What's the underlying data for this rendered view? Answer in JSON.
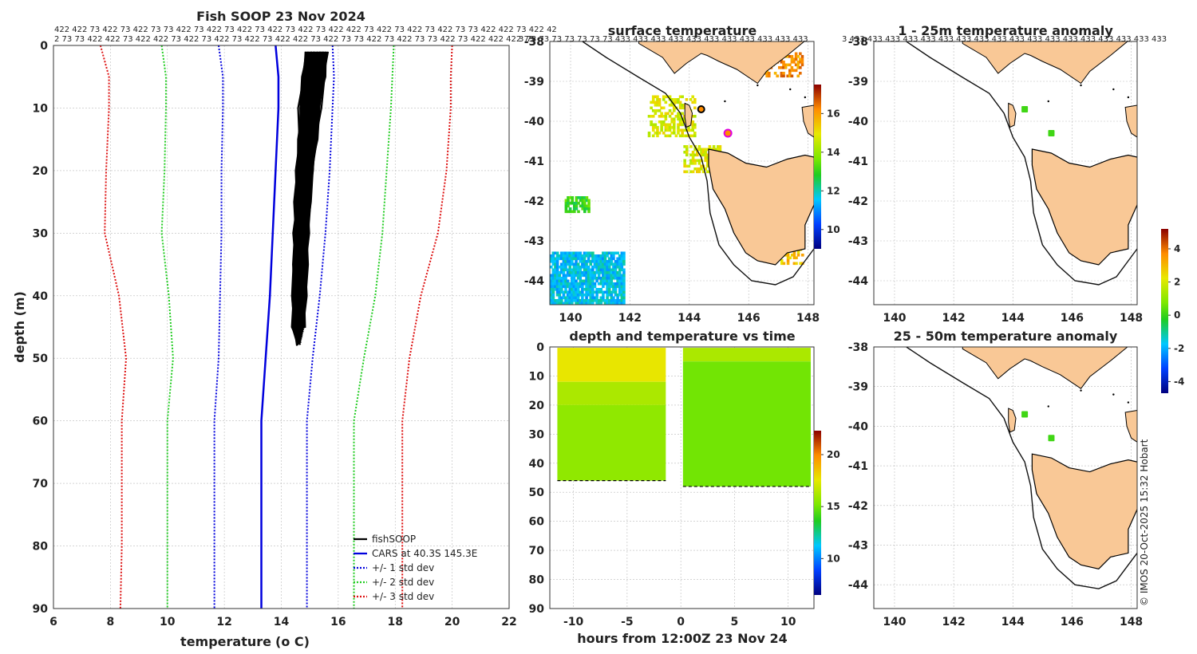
{
  "chart_data": [
    {
      "type": "line",
      "title": "Fish SOOP 23 Nov 2024",
      "xlabel": "temperature",
      "xlabel_unit": "(o C)",
      "ylabel": "depth (m)",
      "xlim": [
        6,
        22
      ],
      "ylim": [
        0,
        90
      ],
      "xticks": [
        "6",
        "8",
        "10",
        "12",
        "14",
        "16",
        "18",
        "20",
        "22"
      ],
      "yticks": [
        "0",
        "10",
        "20",
        "30",
        "40",
        "50",
        "60",
        "70",
        "80",
        "90"
      ],
      "top_counts_row1": "422 422 73 422 73 422 73 73 422 73 422 73 422 73 422 73 422 73 422 422 73 422 73 422 73 422 73 73 422 422 73 422 42",
      "top_counts_row2": "2 73 73 422 422 73 422 422 73 422 73 422 73 422 73 422 422 73 422 73 73 422 73 422 73 73 422 73 422 422 422 73",
      "legend": [
        "fishSOOP",
        "CARS at 40.3S 145.3E",
        "+/- 1 std dev",
        "+/- 2 std dev",
        "+/- 3 std dev"
      ],
      "series": [
        {
          "name": "CARS at 40.3S 145.3E",
          "color": "#0000dd",
          "depth": [
            0,
            5,
            10,
            20,
            30,
            40,
            50,
            60,
            70,
            80,
            90
          ],
          "temp": [
            13.8,
            13.9,
            13.9,
            13.8,
            13.7,
            13.6,
            13.45,
            13.3,
            13.3,
            13.3,
            13.3
          ]
        },
        {
          "name": "-1 std",
          "color": "#0000dd",
          "depth": [
            0,
            5,
            10,
            20,
            30,
            40,
            50,
            60,
            70,
            80,
            90
          ],
          "temp": [
            11.8,
            11.95,
            11.95,
            11.9,
            11.9,
            11.85,
            11.8,
            11.65,
            11.65,
            11.65,
            11.65
          ]
        },
        {
          "name": "+1 std",
          "color": "#0000dd",
          "depth": [
            0,
            5,
            10,
            20,
            30,
            40,
            50,
            60,
            70,
            80,
            90
          ],
          "temp": [
            15.8,
            15.85,
            15.8,
            15.7,
            15.55,
            15.35,
            15.1,
            14.9,
            14.9,
            14.9,
            14.9
          ]
        },
        {
          "name": "-2 std",
          "color": "#22cc22",
          "depth": [
            0,
            5,
            10,
            20,
            30,
            40,
            50,
            60,
            70,
            80,
            90
          ],
          "temp": [
            9.8,
            9.95,
            9.95,
            9.9,
            9.8,
            10.05,
            10.2,
            10.0,
            10.0,
            10.0,
            10.0
          ]
        },
        {
          "name": "+2 std",
          "color": "#22cc22",
          "depth": [
            0,
            5,
            10,
            20,
            30,
            40,
            50,
            60,
            70,
            80,
            90
          ],
          "temp": [
            17.95,
            17.9,
            17.85,
            17.7,
            17.55,
            17.3,
            16.9,
            16.55,
            16.55,
            16.55,
            16.55
          ]
        },
        {
          "name": "-3 std",
          "color": "#dd1111",
          "depth": [
            0,
            5,
            10,
            20,
            30,
            40,
            50,
            60,
            70,
            80,
            90
          ],
          "temp": [
            7.65,
            7.95,
            7.95,
            7.85,
            7.8,
            8.3,
            8.55,
            8.4,
            8.4,
            8.4,
            8.35
          ]
        },
        {
          "name": "+3 std",
          "color": "#dd1111",
          "depth": [
            0,
            5,
            10,
            20,
            30,
            40,
            50,
            60,
            70,
            80,
            90
          ],
          "temp": [
            20.0,
            19.95,
            19.95,
            19.8,
            19.5,
            18.9,
            18.5,
            18.25,
            18.25,
            18.25,
            18.25
          ]
        }
      ],
      "fishsoop_profile": {
        "depth": [
          1,
          5,
          10,
          15,
          20,
          25,
          30,
          35,
          40,
          45,
          48
        ],
        "temp_min": [
          14.85,
          14.75,
          14.65,
          14.6,
          14.55,
          14.5,
          14.45,
          14.45,
          14.4,
          14.4,
          14.6
        ],
        "temp_max": [
          15.6,
          15.55,
          15.35,
          15.25,
          15.1,
          15.0,
          14.95,
          14.9,
          14.85,
          14.8,
          14.75
        ]
      }
    },
    {
      "type": "heatmap",
      "title": "surface temperature",
      "xticks": [
        "140",
        "142",
        "144",
        "146",
        "148"
      ],
      "yticks": [
        "-38",
        "-39",
        "-40",
        "-41",
        "-42",
        "-43",
        "-44"
      ],
      "xlim": [
        139.3,
        148.2
      ],
      "ylim": [
        -44.6,
        -38
      ],
      "top_counts": "3 73 73 73 73 73 73 73 433 433 433 433 433 433 433 433 433 433 433",
      "colorbar_ticks": [
        "10",
        "12",
        "14",
        "16"
      ],
      "colorbar_range": [
        9,
        17.5
      ],
      "markers": [
        {
          "lon": 144.4,
          "lat": -39.7,
          "kind": "orange-black"
        },
        {
          "lon": 145.3,
          "lat": -40.3,
          "kind": "magenta-ring"
        }
      ]
    },
    {
      "type": "scatter",
      "title": "depth and temperature vs time",
      "xlabel": "hours from 12:00Z 23 Nov 24",
      "xticks": [
        "-10",
        "-5",
        "0",
        "5",
        "10"
      ],
      "yticks": [
        "0",
        "10",
        "20",
        "30",
        "40",
        "50",
        "60",
        "70",
        "80",
        "90"
      ],
      "xlim": [
        -12.2,
        12.4
      ],
      "ylim": [
        0,
        90
      ],
      "colorbar_ticks": [
        "10",
        "15",
        "20"
      ],
      "colorbar_range": [
        6.5,
        22.3
      ],
      "segments": [
        {
          "t0": -11.5,
          "t1": -1.4,
          "depth_max": 46
        },
        {
          "t0": 0.2,
          "t1": 12.1,
          "depth_max": 48
        }
      ]
    },
    {
      "type": "heatmap",
      "title": "1 - 25m temperature anomaly",
      "top_counts": "3 433 433 433 433 433 433 433 433 433 433 433 433 433 433 433 433 433 433",
      "xticks": [
        "140",
        "142",
        "144",
        "146",
        "148"
      ],
      "yticks": [
        "-38",
        "-39",
        "-40",
        "-41",
        "-42",
        "-43",
        "-44"
      ],
      "xlim": [
        139.3,
        148.2
      ],
      "ylim": [
        -44.6,
        -38
      ],
      "markers": [
        {
          "lon": 144.4,
          "lat": -39.7
        },
        {
          "lon": 145.3,
          "lat": -40.3
        }
      ]
    },
    {
      "type": "heatmap",
      "title": "25 - 50m temperature anomaly",
      "xticks": [
        "140",
        "142",
        "144",
        "146",
        "148"
      ],
      "yticks": [
        "-38",
        "-39",
        "-40",
        "-41",
        "-42",
        "-43",
        "-44"
      ],
      "xlim": [
        139.3,
        148.2
      ],
      "ylim": [
        -44.6,
        -38
      ],
      "markers": [
        {
          "lon": 144.4,
          "lat": -39.7
        },
        {
          "lon": 145.3,
          "lat": -40.3
        }
      ]
    }
  ],
  "anomaly_colorbar_ticks": [
    "4",
    "2",
    "0",
    "-2",
    "-4"
  ],
  "anomaly_colorbar_range": [
    -4.7,
    5.2
  ],
  "credit": "© IMOS 20-Oct-2025 15:32 Hobart"
}
